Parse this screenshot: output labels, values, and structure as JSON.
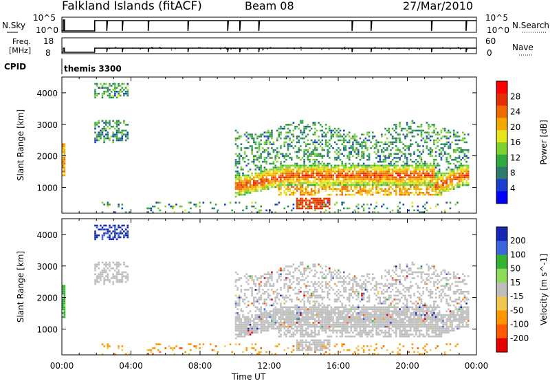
{
  "header": {
    "station": "Falkland Islands (fitACF)",
    "beam": "Beam 08",
    "date": "27/Mar/2010"
  },
  "status_panels": {
    "nsky_label": "N.Sky",
    "nsky_ticks": [
      "10^5",
      "10^0"
    ],
    "nsearch_label": "N.Search",
    "nsearch_ticks": [
      "10^5",
      "10^0"
    ],
    "freq_label_1": "Freq.",
    "freq_label_2": "[MHz]",
    "freq_ticks": [
      "18",
      "8"
    ],
    "nave_label": "Nave",
    "nave_ticks": [
      "60",
      "0"
    ],
    "cpid_label": "CPID",
    "cpid_value": "themis 3300"
  },
  "chart_data": [
    {
      "type": "heatmap",
      "name": "power",
      "xlabel": "",
      "ylabel": "Slant Range [km]",
      "x_ticks": [
        "00:00",
        "04:00",
        "08:00",
        "12:00",
        "16:00",
        "20:00",
        "00:00"
      ],
      "xlim_hours": [
        0,
        24
      ],
      "ylim_km": [
        180,
        4500
      ],
      "y_ticks": [
        1000,
        2000,
        3000,
        4000
      ],
      "colorbar": {
        "label": "Power [dB]",
        "ticks": [
          "4",
          "8",
          "12",
          "16",
          "20",
          "24",
          "28"
        ],
        "colors": [
          "#0000ff",
          "#1a3fcf",
          "#2f7a6f",
          "#2faa3f",
          "#7fd12f",
          "#e6e61a",
          "#f5a800",
          "#f06a00",
          "#e62e00",
          "#ff0000"
        ]
      },
      "features": [
        {
          "desc": "main scatter band",
          "x_hours": [
            12,
            23.4
          ],
          "range_km": [
            1100,
            1700
          ],
          "power_db": 28
        },
        {
          "desc": "upper scatter",
          "x_hours": [
            9.8,
            23.5
          ],
          "range_km": [
            1700,
            3200
          ],
          "power_db": 10
        },
        {
          "desc": "low patch",
          "x_hours": [
            13.5,
            15.5
          ],
          "range_km": [
            300,
            650
          ],
          "power_db": 26
        },
        {
          "desc": "early patch",
          "x_hours": [
            1.8,
            3.8
          ],
          "range_km": [
            2400,
            3100
          ],
          "power_db": 8
        },
        {
          "desc": "early high patch",
          "x_hours": [
            1.8,
            3.8
          ],
          "range_km": [
            3800,
            4300
          ],
          "power_db": 10
        },
        {
          "desc": "near range start",
          "x_hours": [
            0,
            0.1
          ],
          "range_km": [
            1300,
            2400
          ],
          "power_db": 26
        }
      ]
    },
    {
      "type": "heatmap",
      "name": "velocity",
      "xlabel": "Time UT",
      "ylabel": "Slant Range [km]",
      "x_ticks": [
        "00:00",
        "04:00",
        "08:00",
        "12:00",
        "16:00",
        "20:00",
        "00:00"
      ],
      "xlim_hours": [
        0,
        24
      ],
      "ylim_km": [
        180,
        4500
      ],
      "y_ticks": [
        1000,
        2000,
        3000,
        4000
      ],
      "colorbar": {
        "label": "Velocity [m s^-1]",
        "ticks": [
          "200",
          "100",
          "50",
          "15",
          "-15",
          "-50",
          "-100",
          "-200"
        ],
        "colors": [
          "#1428b4",
          "#3c64dc",
          "#32b432",
          "#8cdc5a",
          "#bebebe",
          "#f0c850",
          "#ff9600",
          "#ff5a00",
          "#e60000"
        ]
      },
      "features": [
        {
          "desc": "ground scatter band",
          "x_hours": [
            10,
            23.5
          ],
          "range_km": [
            700,
            2700
          ],
          "velocity": 0
        },
        {
          "desc": "early grey patch",
          "x_hours": [
            2,
            3.6
          ],
          "range_km": [
            2500,
            3100
          ],
          "velocity": 0
        },
        {
          "desc": "high positive patch",
          "x_hours": [
            1.8,
            3.6
          ],
          "range_km": [
            3700,
            4300
          ],
          "velocity": 200
        },
        {
          "desc": "low negative scatter",
          "x_hours": [
            1,
            11
          ],
          "range_km": [
            200,
            500
          ],
          "velocity": -40
        }
      ]
    }
  ]
}
